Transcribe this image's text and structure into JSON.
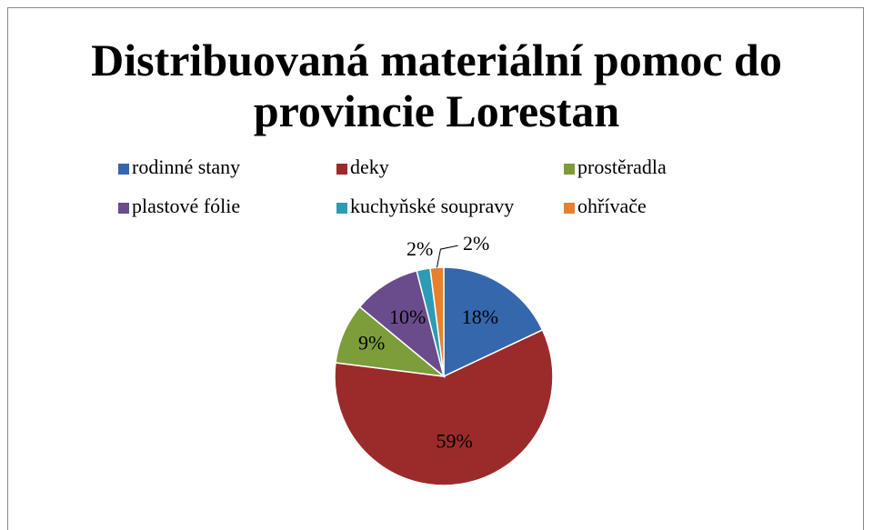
{
  "chart_data": {
    "type": "pie",
    "title": "Distribuovaná materiální pomoc do provincie Lorestan",
    "categories": [
      "rodinné stany",
      "deky",
      "prostěradla",
      "plastové fólie",
      "kuchyňské soupravy",
      "ohřívače"
    ],
    "values": [
      18,
      59,
      9,
      10,
      2,
      2
    ],
    "value_labels": [
      "18%",
      "59%",
      "9%",
      "10%",
      "2%",
      "2%"
    ],
    "colors": [
      "#3567ad",
      "#9b2b2a",
      "#7d9c3a",
      "#6a4c8c",
      "#2c9bb5",
      "#e87f2a"
    ],
    "legend": "top"
  }
}
